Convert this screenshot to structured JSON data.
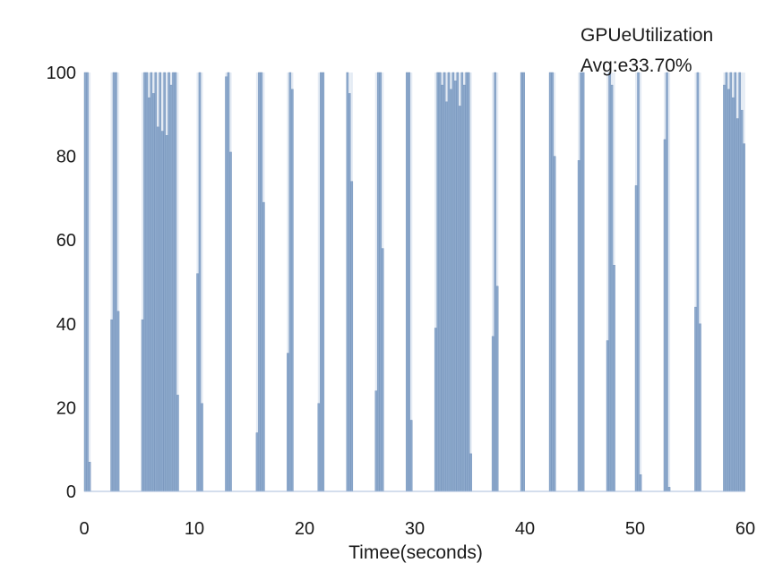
{
  "chart_data": {
    "type": "bar",
    "title": "",
    "xlabel": "Timee(seconds)",
    "ylabel": "",
    "xlim": [
      0,
      60
    ],
    "ylim": [
      0,
      100
    ],
    "xticks": [
      "0",
      "10",
      "20",
      "30",
      "40",
      "50",
      "60"
    ],
    "yticks": [
      "0",
      "20",
      "40",
      "60",
      "80",
      "100"
    ],
    "grid": false,
    "legend_placement": "top-right",
    "legend": {
      "line1": "GPUeUtilization",
      "line2": "Avg:e33.70%"
    },
    "colors": {
      "bar": "#8da9cc",
      "bar_edge": "#6f8fb8",
      "bar_light": "#e4ebf4",
      "baseline": "#a9bedb"
    },
    "series": [
      {
        "values": [
          [
            0.0,
            100
          ],
          [
            0.2,
            100
          ],
          [
            0.4,
            7
          ],
          [
            2.4,
            41
          ],
          [
            2.6,
            100
          ],
          [
            2.8,
            100
          ],
          [
            3.0,
            43
          ],
          [
            5.2,
            41
          ],
          [
            5.4,
            100
          ],
          [
            5.6,
            100
          ],
          [
            5.8,
            94
          ],
          [
            6.0,
            100
          ],
          [
            6.2,
            95
          ],
          [
            6.4,
            100
          ],
          [
            6.6,
            87
          ],
          [
            6.8,
            100
          ],
          [
            7.0,
            86
          ],
          [
            7.2,
            100
          ],
          [
            7.4,
            85
          ],
          [
            7.6,
            100
          ],
          [
            7.8,
            97
          ],
          [
            8.0,
            100
          ],
          [
            8.2,
            100
          ],
          [
            8.4,
            23
          ],
          [
            10.2,
            52
          ],
          [
            10.4,
            100
          ],
          [
            10.6,
            21
          ],
          [
            12.8,
            99
          ],
          [
            13.0,
            100
          ],
          [
            13.2,
            81
          ],
          [
            15.6,
            14
          ],
          [
            15.8,
            100
          ],
          [
            16.0,
            100
          ],
          [
            16.2,
            69
          ],
          [
            18.4,
            33
          ],
          [
            18.6,
            100
          ],
          [
            18.8,
            96
          ],
          [
            21.2,
            21
          ],
          [
            21.4,
            100
          ],
          [
            21.6,
            100
          ],
          [
            23.8,
            100
          ],
          [
            24.0,
            95
          ],
          [
            24.2,
            74
          ],
          [
            26.4,
            24
          ],
          [
            26.6,
            100
          ],
          [
            26.8,
            100
          ],
          [
            27.0,
            58
          ],
          [
            29.2,
            100
          ],
          [
            29.4,
            100
          ],
          [
            29.6,
            17
          ],
          [
            31.8,
            39
          ],
          [
            32.0,
            100
          ],
          [
            32.2,
            100
          ],
          [
            32.4,
            97
          ],
          [
            32.6,
            100
          ],
          [
            32.8,
            93
          ],
          [
            33.0,
            100
          ],
          [
            33.2,
            96
          ],
          [
            33.4,
            100
          ],
          [
            33.6,
            98
          ],
          [
            33.8,
            100
          ],
          [
            34.0,
            92
          ],
          [
            34.2,
            100
          ],
          [
            34.4,
            97
          ],
          [
            34.6,
            100
          ],
          [
            34.8,
            100
          ],
          [
            35.0,
            9
          ],
          [
            37.0,
            37
          ],
          [
            37.2,
            100
          ],
          [
            37.4,
            49
          ],
          [
            39.6,
            100
          ],
          [
            39.8,
            100
          ],
          [
            42.2,
            100
          ],
          [
            42.4,
            100
          ],
          [
            42.6,
            80
          ],
          [
            44.8,
            79
          ],
          [
            45.0,
            100
          ],
          [
            45.2,
            100
          ],
          [
            47.4,
            36
          ],
          [
            47.6,
            100
          ],
          [
            47.8,
            97
          ],
          [
            48.0,
            54
          ],
          [
            50.0,
            73
          ],
          [
            50.2,
            100
          ],
          [
            50.4,
            4
          ],
          [
            52.6,
            84
          ],
          [
            52.8,
            100
          ],
          [
            53.0,
            1
          ],
          [
            55.4,
            44
          ],
          [
            55.6,
            100
          ],
          [
            55.8,
            40
          ],
          [
            58.0,
            97
          ],
          [
            58.2,
            100
          ],
          [
            58.4,
            96
          ],
          [
            58.6,
            100
          ],
          [
            58.8,
            94
          ],
          [
            59.0,
            100
          ],
          [
            59.2,
            89
          ],
          [
            59.4,
            100
          ],
          [
            59.6,
            91
          ],
          [
            59.8,
            83
          ]
        ]
      }
    ]
  }
}
